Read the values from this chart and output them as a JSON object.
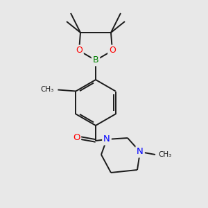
{
  "background_color": "#e8e8e8",
  "bond_color": "#1a1a1a",
  "atom_colors": {
    "B": "#008000",
    "O": "#ff0000",
    "N": "#0000ff"
  },
  "figsize": [
    3.0,
    3.0
  ],
  "dpi": 100
}
